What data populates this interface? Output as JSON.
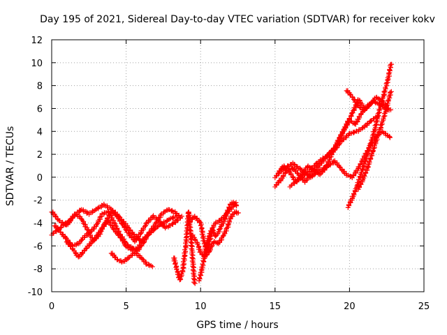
{
  "chart_data": {
    "type": "scatter",
    "title": "Day 195 of 2021, Sidereal Day-to-day VTEC variation (SDTVAR) for receiver kokv",
    "xlabel": "GPS time / hours",
    "ylabel": "SDTVAR / TECUs",
    "xlim": [
      0,
      25
    ],
    "ylim": [
      -10,
      12
    ],
    "xticks": [
      0,
      5,
      10,
      15,
      20,
      25
    ],
    "yticks": [
      -10,
      -8,
      -6,
      -4,
      -2,
      0,
      2,
      4,
      6,
      8,
      10,
      12
    ],
    "grid": true,
    "marker": "+",
    "series": [
      {
        "name": "SDTVAR",
        "color": "#ff0000",
        "tracks": [
          [
            [
              0.0,
              -3.0
            ],
            [
              0.5,
              -3.8
            ],
            [
              1.0,
              -4.2
            ],
            [
              1.5,
              -3.4
            ],
            [
              2.0,
              -2.8
            ],
            [
              2.5,
              -3.2
            ],
            [
              3.0,
              -2.8
            ],
            [
              3.5,
              -2.4
            ],
            [
              4.0,
              -2.8
            ],
            [
              4.5,
              -3.4
            ],
            [
              5.0,
              -4.2
            ],
            [
              5.5,
              -5.0
            ],
            [
              6.0,
              -5.6
            ],
            [
              6.5,
              -5.0
            ],
            [
              7.0,
              -4.4
            ],
            [
              7.5,
              -4.0
            ],
            [
              8.0,
              -3.6
            ],
            [
              8.5,
              -3.4
            ]
          ],
          [
            [
              0.0,
              -5.0
            ],
            [
              0.4,
              -4.6
            ],
            [
              0.8,
              -4.2
            ],
            [
              1.2,
              -3.8
            ],
            [
              1.6,
              -3.2
            ],
            [
              2.0,
              -3.6
            ],
            [
              2.4,
              -4.6
            ],
            [
              2.8,
              -5.6
            ],
            [
              3.2,
              -5.0
            ],
            [
              3.6,
              -4.0
            ],
            [
              4.0,
              -3.0
            ],
            [
              4.4,
              -3.4
            ],
            [
              4.8,
              -4.2
            ],
            [
              5.2,
              -5.0
            ],
            [
              5.6,
              -5.6
            ],
            [
              6.0,
              -4.8
            ],
            [
              6.4,
              -4.0
            ],
            [
              6.8,
              -3.4
            ],
            [
              7.2,
              -3.8
            ],
            [
              7.6,
              -4.4
            ],
            [
              8.0,
              -4.2
            ],
            [
              8.4,
              -3.8
            ],
            [
              8.8,
              -3.4
            ]
          ],
          [
            [
              0.2,
              -4.2
            ],
            [
              0.6,
              -4.8
            ],
            [
              1.0,
              -5.4
            ],
            [
              1.4,
              -6.0
            ],
            [
              1.8,
              -5.8
            ],
            [
              2.2,
              -5.2
            ],
            [
              2.6,
              -4.8
            ],
            [
              3.0,
              -4.2
            ],
            [
              3.4,
              -3.2
            ],
            [
              3.8,
              -3.0
            ],
            [
              4.2,
              -4.0
            ],
            [
              4.6,
              -5.0
            ],
            [
              5.0,
              -5.8
            ],
            [
              5.4,
              -6.2
            ],
            [
              5.8,
              -6.4
            ],
            [
              6.2,
              -5.6
            ],
            [
              6.6,
              -4.8
            ],
            [
              7.0,
              -4.0
            ],
            [
              7.4,
              -3.2
            ],
            [
              7.8,
              -2.8
            ],
            [
              8.2,
              -3.0
            ],
            [
              8.6,
              -3.4
            ]
          ],
          [
            [
              1.0,
              -5.6
            ],
            [
              1.5,
              -6.4
            ],
            [
              1.8,
              -7.0
            ],
            [
              2.2,
              -6.4
            ],
            [
              2.6,
              -5.8
            ],
            [
              3.0,
              -5.2
            ],
            [
              3.4,
              -4.4
            ],
            [
              3.8,
              -3.8
            ],
            [
              4.2,
              -4.6
            ],
            [
              4.6,
              -5.2
            ],
            [
              5.0,
              -6.0
            ],
            [
              5.4,
              -6.4
            ],
            [
              5.8,
              -6.2
            ],
            [
              6.2,
              -5.4
            ],
            [
              6.6,
              -4.8
            ]
          ],
          [
            [
              4.0,
              -6.6
            ],
            [
              4.4,
              -7.2
            ],
            [
              4.8,
              -7.4
            ],
            [
              5.2,
              -7.0
            ],
            [
              5.6,
              -6.6
            ],
            [
              6.0,
              -7.0
            ],
            [
              6.4,
              -7.6
            ],
            [
              6.8,
              -7.8
            ]
          ],
          [
            [
              8.2,
              -7.0
            ],
            [
              8.4,
              -8.0
            ],
            [
              8.6,
              -9.0
            ],
            [
              8.8,
              -8.2
            ],
            [
              9.0,
              -6.0
            ],
            [
              9.2,
              -3.0
            ],
            [
              9.4,
              -6.0
            ],
            [
              9.6,
              -9.4
            ]
          ],
          [
            [
              9.2,
              -4.0
            ],
            [
              9.6,
              -3.4
            ],
            [
              10.0,
              -4.0
            ],
            [
              10.2,
              -5.4
            ],
            [
              10.4,
              -6.6
            ],
            [
              10.6,
              -5.6
            ],
            [
              10.8,
              -4.6
            ],
            [
              11.0,
              -5.2
            ],
            [
              11.2,
              -4.8
            ],
            [
              11.4,
              -4.2
            ],
            [
              11.6,
              -3.8
            ],
            [
              11.8,
              -3.0
            ],
            [
              12.0,
              -2.4
            ],
            [
              12.2,
              -2.2
            ],
            [
              12.5,
              -2.6
            ]
          ],
          [
            [
              9.4,
              -5.0
            ],
            [
              9.8,
              -5.8
            ],
            [
              10.0,
              -6.6
            ],
            [
              10.3,
              -7.0
            ],
            [
              10.6,
              -6.4
            ],
            [
              10.9,
              -5.6
            ],
            [
              11.2,
              -5.8
            ],
            [
              11.5,
              -5.2
            ],
            [
              11.8,
              -4.4
            ],
            [
              12.0,
              -3.6
            ],
            [
              12.3,
              -3.0
            ],
            [
              12.6,
              -3.2
            ]
          ],
          [
            [
              9.9,
              -9.0
            ],
            [
              10.1,
              -8.0
            ],
            [
              10.3,
              -6.6
            ],
            [
              10.5,
              -5.4
            ],
            [
              10.8,
              -4.4
            ],
            [
              11.0,
              -4.0
            ],
            [
              11.3,
              -3.8
            ],
            [
              11.6,
              -3.4
            ],
            [
              12.0,
              -2.8
            ],
            [
              12.4,
              -2.2
            ]
          ],
          [
            [
              15.0,
              -0.8
            ],
            [
              15.4,
              -0.2
            ],
            [
              15.8,
              0.6
            ],
            [
              16.2,
              0.8
            ],
            [
              16.6,
              0.2
            ],
            [
              17.0,
              -0.4
            ],
            [
              17.4,
              0.2
            ],
            [
              17.8,
              0.8
            ],
            [
              18.2,
              1.4
            ],
            [
              18.6,
              2.0
            ],
            [
              19.0,
              2.6
            ],
            [
              19.4,
              3.6
            ],
            [
              19.8,
              4.6
            ],
            [
              20.2,
              5.6
            ],
            [
              20.6,
              6.8
            ],
            [
              21.0,
              6.0
            ]
          ],
          [
            [
              15.2,
              0.4
            ],
            [
              15.6,
              1.0
            ],
            [
              16.0,
              0.4
            ],
            [
              16.4,
              -0.4
            ],
            [
              16.8,
              0.2
            ],
            [
              17.2,
              1.0
            ],
            [
              17.6,
              0.6
            ],
            [
              18.0,
              0.2
            ],
            [
              18.4,
              0.8
            ],
            [
              18.8,
              2.0
            ],
            [
              19.2,
              3.0
            ],
            [
              19.6,
              4.0
            ],
            [
              20.0,
              5.0
            ],
            [
              20.4,
              4.6
            ],
            [
              20.8,
              5.6
            ],
            [
              21.2,
              6.2
            ],
            [
              21.6,
              6.6
            ],
            [
              22.0,
              6.4
            ],
            [
              22.4,
              6.0
            ],
            [
              22.8,
              5.8
            ]
          ],
          [
            [
              15.0,
              0.0
            ],
            [
              15.6,
              0.8
            ],
            [
              16.2,
              1.2
            ],
            [
              16.8,
              0.6
            ],
            [
              17.4,
              0.0
            ],
            [
              18.0,
              0.6
            ],
            [
              18.6,
              1.0
            ],
            [
              19.0,
              1.4
            ],
            [
              19.4,
              0.8
            ],
            [
              19.8,
              0.2
            ],
            [
              20.2,
              0.0
            ],
            [
              20.6,
              0.8
            ],
            [
              21.0,
              1.8
            ],
            [
              21.4,
              2.8
            ],
            [
              21.8,
              3.6
            ],
            [
              22.2,
              4.0
            ],
            [
              22.6,
              3.6
            ],
            [
              22.8,
              3.4
            ]
          ],
          [
            [
              16.0,
              -0.8
            ],
            [
              16.6,
              -0.2
            ],
            [
              17.2,
              0.4
            ],
            [
              17.8,
              1.2
            ],
            [
              18.4,
              1.8
            ],
            [
              19.0,
              2.4
            ],
            [
              19.5,
              3.2
            ],
            [
              20.0,
              3.8
            ],
            [
              20.5,
              4.0
            ],
            [
              21.0,
              4.4
            ],
            [
              21.5,
              5.0
            ],
            [
              22.0,
              5.4
            ]
          ],
          [
            [
              19.9,
              -2.6
            ],
            [
              20.2,
              -1.8
            ],
            [
              20.5,
              -0.8
            ],
            [
              20.8,
              0.4
            ],
            [
              21.1,
              1.6
            ],
            [
              21.4,
              2.8
            ],
            [
              21.7,
              4.2
            ],
            [
              22.0,
              5.8
            ],
            [
              22.3,
              7.2
            ],
            [
              22.6,
              8.6
            ],
            [
              22.8,
              10.0
            ]
          ],
          [
            [
              20.6,
              -1.0
            ],
            [
              20.9,
              -0.2
            ],
            [
              21.2,
              0.8
            ],
            [
              21.5,
              2.0
            ],
            [
              21.8,
              3.2
            ],
            [
              22.1,
              4.4
            ],
            [
              22.4,
              5.6
            ],
            [
              22.6,
              6.6
            ],
            [
              22.8,
              7.6
            ]
          ],
          [
            [
              19.8,
              7.6
            ],
            [
              20.2,
              7.0
            ],
            [
              20.6,
              6.2
            ],
            [
              21.0,
              5.8
            ],
            [
              21.4,
              6.4
            ],
            [
              21.8,
              7.0
            ],
            [
              22.2,
              6.6
            ],
            [
              22.6,
              6.0
            ]
          ]
        ]
      }
    ]
  }
}
